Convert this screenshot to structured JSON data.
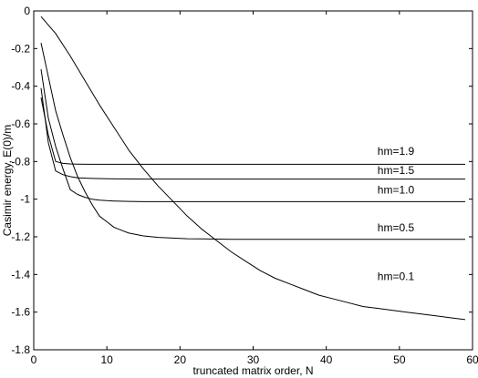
{
  "chart_data": {
    "type": "line",
    "title": "",
    "xlabel": "truncated matrix order, N",
    "ylabel": "Casimir energy, E(0)/m",
    "xlim": [
      0,
      60
    ],
    "ylim": [
      -1.8,
      0
    ],
    "xticks": [
      0,
      10,
      20,
      30,
      40,
      50,
      60
    ],
    "xtick_labels": [
      "0",
      "10",
      "20",
      "30",
      "40",
      "50",
      "60"
    ],
    "yticks": [
      0,
      -0.2,
      -0.4,
      -0.6,
      -0.8,
      -1,
      -1.2,
      -1.4,
      -1.6,
      -1.8
    ],
    "ytick_labels": [
      "0",
      "-0.2",
      "-0.4",
      "-0.6",
      "-0.8",
      "-1",
      "-1.2",
      "-1.4",
      "-1.6",
      "-1.8"
    ],
    "grid": false,
    "series": [
      {
        "name": "hm=0.1",
        "x": [
          1,
          3,
          5,
          7,
          9,
          11,
          13,
          15,
          17,
          19,
          21,
          23,
          25,
          27,
          29,
          31,
          33,
          35,
          37,
          39,
          41,
          43,
          45,
          47,
          49,
          51,
          53,
          55,
          57,
          59
        ],
        "values": [
          -0.03,
          -0.12,
          -0.24,
          -0.37,
          -0.5,
          -0.62,
          -0.74,
          -0.84,
          -0.93,
          -1.01,
          -1.09,
          -1.16,
          -1.22,
          -1.28,
          -1.33,
          -1.38,
          -1.42,
          -1.45,
          -1.48,
          -1.51,
          -1.53,
          -1.55,
          -1.57,
          -1.58,
          -1.59,
          -1.6,
          -1.61,
          -1.62,
          -1.63,
          -1.64
        ]
      },
      {
        "name": "hm=0.5",
        "x": [
          1,
          2,
          3,
          4,
          5,
          6,
          7,
          8,
          9,
          10,
          11,
          13,
          15,
          17,
          19,
          21,
          23,
          25,
          27,
          30,
          35,
          40,
          45,
          50,
          55,
          59
        ],
        "values": [
          -0.17,
          -0.35,
          -0.53,
          -0.66,
          -0.78,
          -0.88,
          -0.96,
          -1.03,
          -1.09,
          -1.12,
          -1.15,
          -1.18,
          -1.195,
          -1.203,
          -1.207,
          -1.21,
          -1.211,
          -1.212,
          -1.213,
          -1.213,
          -1.213,
          -1.213,
          -1.213,
          -1.213,
          -1.213,
          -1.213
        ]
      },
      {
        "name": "hm=1.0",
        "x": [
          1,
          2,
          3,
          4,
          5,
          6,
          7,
          8,
          9,
          10,
          11,
          13,
          15,
          20,
          25,
          30,
          40,
          50,
          59
        ],
        "values": [
          -0.31,
          -0.57,
          -0.72,
          -0.84,
          -0.95,
          -0.975,
          -0.99,
          -1.0,
          -1.005,
          -1.008,
          -1.01,
          -1.012,
          -1.013,
          -1.013,
          -1.013,
          -1.013,
          -1.013,
          -1.013,
          -1.013
        ]
      },
      {
        "name": "hm=1.5",
        "x": [
          1,
          2,
          3,
          4,
          5,
          6,
          8,
          10,
          15,
          20,
          30,
          40,
          50,
          59
        ],
        "values": [
          -0.41,
          -0.7,
          -0.85,
          -0.87,
          -0.88,
          -0.887,
          -0.89,
          -0.892,
          -0.893,
          -0.893,
          -0.893,
          -0.893,
          -0.893,
          -0.893
        ]
      },
      {
        "name": "hm=1.9",
        "x": [
          1,
          2,
          3,
          4,
          5,
          6,
          8,
          10,
          15,
          20,
          30,
          40,
          50,
          59
        ],
        "values": [
          -0.46,
          -0.66,
          -0.8,
          -0.81,
          -0.813,
          -0.814,
          -0.815,
          -0.815,
          -0.815,
          -0.815,
          -0.815,
          -0.815,
          -0.815,
          -0.815
        ]
      }
    ],
    "series_label_positions": [
      {
        "name": "hm=0.1",
        "x": 47,
        "y": -1.43
      },
      {
        "name": "hm=0.5",
        "x": 47,
        "y": -1.17
      },
      {
        "name": "hm=1.0",
        "x": 47,
        "y": -0.97
      },
      {
        "name": "hm=1.5",
        "x": 47,
        "y": -0.865
      },
      {
        "name": "hm=1.9",
        "x": 47,
        "y": -0.765
      }
    ]
  }
}
